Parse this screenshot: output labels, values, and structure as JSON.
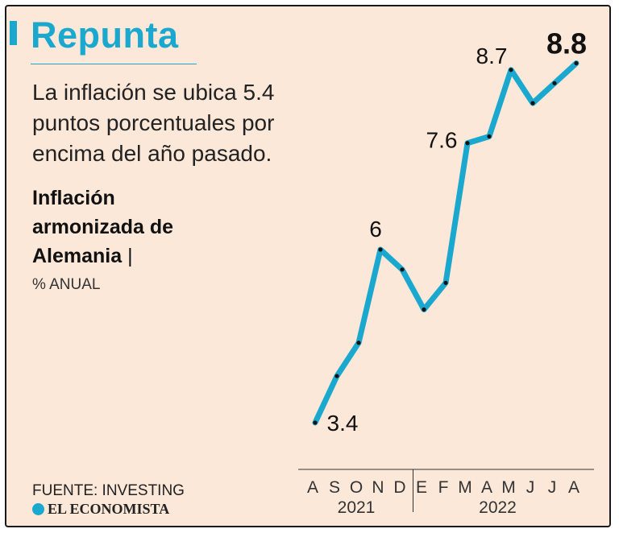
{
  "header": {
    "title": "Repunta",
    "subtitle": "La inflación se ubica 5.4 puntos porcentuales por encima del año pasado.",
    "series_title": "Inflación armonizada de Alemania",
    "series_title_pipe": "|",
    "unit": "% ANUAL"
  },
  "footer": {
    "source": "FUENTE: INVESTING",
    "brand": "EL ECONOMISTA"
  },
  "colors": {
    "background": "#fbe8d9",
    "accent": "#1ba8cf",
    "line": "#1ba8cf",
    "text": "#222222"
  },
  "chart_data": {
    "type": "line",
    "title": "Inflación armonizada de Alemania",
    "ylabel": "% ANUAL",
    "categories": [
      "A",
      "S",
      "O",
      "N",
      "D",
      "E",
      "F",
      "M",
      "A",
      "M",
      "J",
      "J",
      "A"
    ],
    "year_labels": [
      {
        "label": "2021",
        "from_index": 0,
        "to_index": 4
      },
      {
        "label": "2022",
        "from_index": 5,
        "to_index": 12
      }
    ],
    "values": [
      3.4,
      4.1,
      4.6,
      6.0,
      5.7,
      5.1,
      5.5,
      7.6,
      7.7,
      8.7,
      8.2,
      8.5,
      8.8
    ],
    "ylim": [
      3.0,
      9.0
    ],
    "labeled_points": [
      {
        "index": 0,
        "label": "3.4"
      },
      {
        "index": 3,
        "label": "6"
      },
      {
        "index": 7,
        "label": "7.6"
      },
      {
        "index": 9,
        "label": "8.7"
      },
      {
        "index": 12,
        "label": "8.8",
        "emphasis": true
      }
    ],
    "grid": false,
    "legend": "none"
  }
}
